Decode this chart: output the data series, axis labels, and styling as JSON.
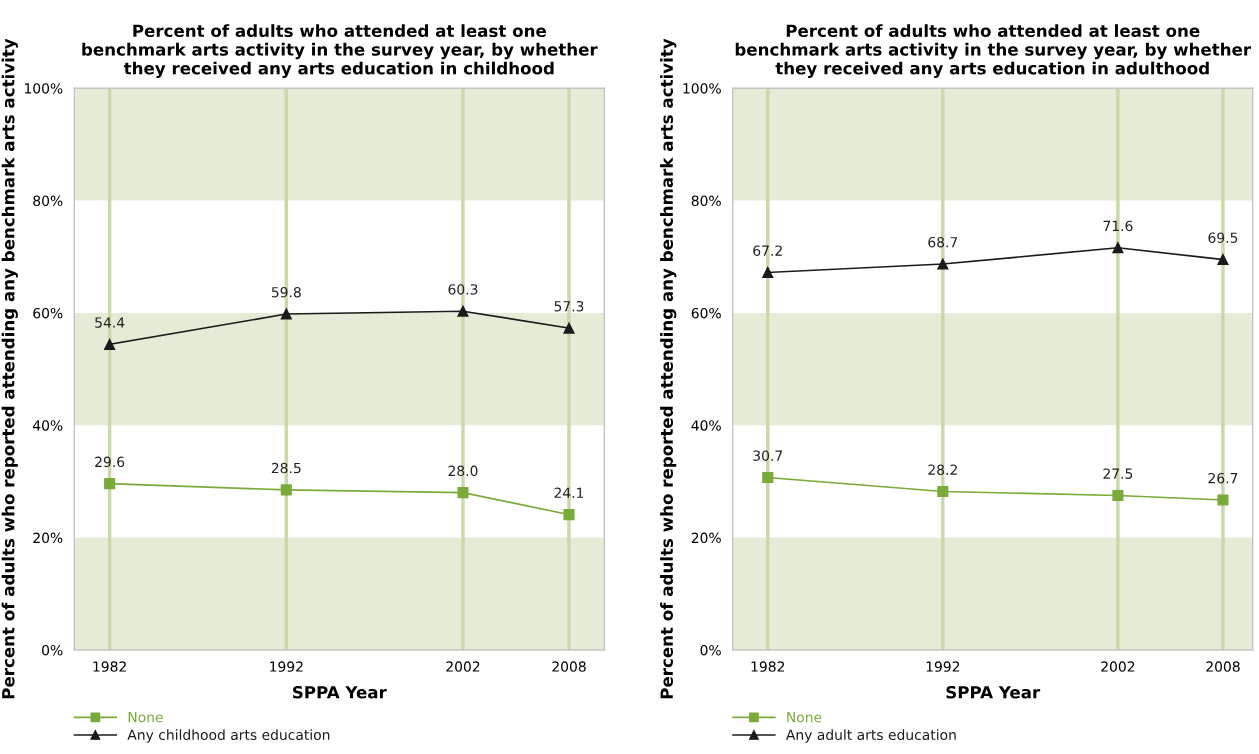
{
  "chart_data": [
    {
      "type": "line",
      "title": "Percent of adults who attended at least one\nbenchmark arts activity in the survey year, by whether\nthey received any arts education in childhood",
      "xlabel": "SPPA Year",
      "ylabel": "Percent of adults who reported attending any benchmark arts activity",
      "x": [
        1982,
        1992,
        2002,
        2008
      ],
      "series": [
        {
          "name": "None",
          "color": "#7aab3a",
          "marker": "square",
          "values": [
            29.6,
            28.5,
            28.0,
            24.1
          ],
          "value_labels": [
            "29.6",
            "28.5",
            "28.0",
            "24.1"
          ]
        },
        {
          "name": "Any childhood arts education",
          "color": "#1a1a1a",
          "marker": "triangle",
          "values": [
            54.4,
            59.8,
            60.3,
            57.3
          ],
          "value_labels": [
            "54.4",
            "59.8",
            "60.3",
            "57.3"
          ]
        }
      ],
      "xlim": [
        1980,
        2010
      ],
      "xticks": [
        1982,
        1992,
        2002,
        2008
      ],
      "ylim": [
        0,
        100
      ],
      "yticks": [
        {
          "value": 0,
          "label": "0%"
        },
        {
          "value": 20,
          "label": "20%"
        },
        {
          "value": 40,
          "label": "40%"
        },
        {
          "value": 60,
          "label": "60%"
        },
        {
          "value": 80,
          "label": "80%"
        },
        {
          "value": 100,
          "label": "100%"
        }
      ],
      "bands": [
        {
          "axis": "y",
          "from": 0,
          "to": 20,
          "color": "#e4ecd8"
        },
        {
          "axis": "y",
          "from": 40,
          "to": 60,
          "color": "#e4ecd8"
        },
        {
          "axis": "y",
          "from": 80,
          "to": 100,
          "color": "#e4ecd8"
        }
      ],
      "ref_lines": [
        {
          "axis": "x",
          "value": 1982,
          "color": "#c9d9a9"
        },
        {
          "axis": "x",
          "value": 1992,
          "color": "#c9d9a9"
        },
        {
          "axis": "x",
          "value": 2002,
          "color": "#c9d9a9"
        },
        {
          "axis": "x",
          "value": 2008,
          "color": "#c9d9a9"
        }
      ],
      "grid": false,
      "legend": "bottom",
      "line_style": "solid"
    },
    {
      "type": "line",
      "title": "Percent of adults who attended at least one\nbenchmark arts activity in the survey year, by whether\nthey received any arts education in adulthood",
      "xlabel": "SPPA Year",
      "ylabel": "Percent of adults who reported attending any benchmark arts activity",
      "x": [
        1982,
        1992,
        2002,
        2008
      ],
      "series": [
        {
          "name": "None",
          "color": "#7aab3a",
          "marker": "square",
          "values": [
            30.7,
            28.2,
            27.5,
            26.7
          ],
          "value_labels": [
            "30.7",
            "28.2",
            "27.5",
            "26.7"
          ]
        },
        {
          "name": "Any adult arts education",
          "color": "#1a1a1a",
          "marker": "triangle",
          "values": [
            67.2,
            68.7,
            71.6,
            69.5
          ],
          "value_labels": [
            "67.2",
            "68.7",
            "71.6",
            "69.5"
          ]
        }
      ],
      "xlim": [
        1980,
        2009.7
      ],
      "xticks": [
        1982,
        1992,
        2002,
        2008
      ],
      "ylim": [
        0,
        100
      ],
      "yticks": [
        {
          "value": 0,
          "label": "0%"
        },
        {
          "value": 20,
          "label": "20%"
        },
        {
          "value": 40,
          "label": "40%"
        },
        {
          "value": 60,
          "label": "60%"
        },
        {
          "value": 80,
          "label": "80%"
        },
        {
          "value": 100,
          "label": "100%"
        }
      ],
      "bands": [
        {
          "axis": "y",
          "from": 0,
          "to": 20,
          "color": "#e4ecd8"
        },
        {
          "axis": "y",
          "from": 40,
          "to": 60,
          "color": "#e4ecd8"
        },
        {
          "axis": "y",
          "from": 80,
          "to": 100,
          "color": "#e4ecd8"
        }
      ],
      "ref_lines": [
        {
          "axis": "x",
          "value": 1982,
          "color": "#c9d9a9"
        },
        {
          "axis": "x",
          "value": 1992,
          "color": "#c9d9a9"
        },
        {
          "axis": "x",
          "value": 2002,
          "color": "#c9d9a9"
        },
        {
          "axis": "x",
          "value": 2008,
          "color": "#c9d9a9"
        }
      ],
      "grid": false,
      "legend": "bottom",
      "line_style": "solid"
    }
  ]
}
